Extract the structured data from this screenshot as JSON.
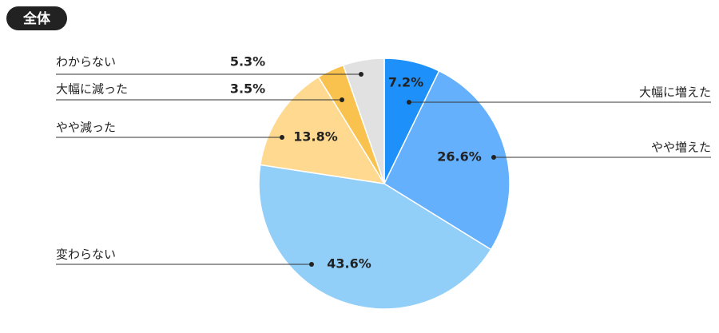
{
  "chart_data": {
    "type": "pie",
    "title": "全体",
    "categories": [
      "大幅に増えた",
      "やや増えた",
      "変わらない",
      "やや減った",
      "大幅に減った",
      "わからない"
    ],
    "values": [
      7.2,
      26.6,
      43.6,
      13.8,
      3.5,
      5.3
    ],
    "value_labels": [
      "7.2%",
      "26.6%",
      "43.6%",
      "13.8%",
      "3.5%",
      "5.3%"
    ],
    "colors": [
      "#1e90fa",
      "#64b0fc",
      "#91cef8",
      "#fed98f",
      "#f9c24e",
      "#e1e1e1"
    ]
  }
}
